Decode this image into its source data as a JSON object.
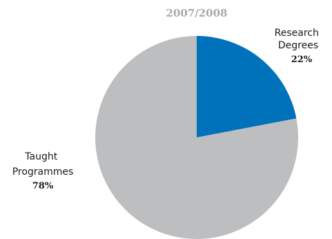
{
  "chart_data": {
    "type": "pie",
    "title": "2007/2008",
    "slices": [
      {
        "name": "Research Degrees",
        "label_lines": [
          "Research",
          "Degrees"
        ],
        "value": 22,
        "value_label": "22%",
        "color": "#0072bc"
      },
      {
        "name": "Taught Programmes",
        "label_lines": [
          "Taught",
          "Programmes"
        ],
        "value": 78,
        "value_label": "78%",
        "color": "#bcbec0"
      }
    ],
    "title_color": "#a7a9ac",
    "start": "12 o'clock",
    "direction": "clockwise"
  }
}
